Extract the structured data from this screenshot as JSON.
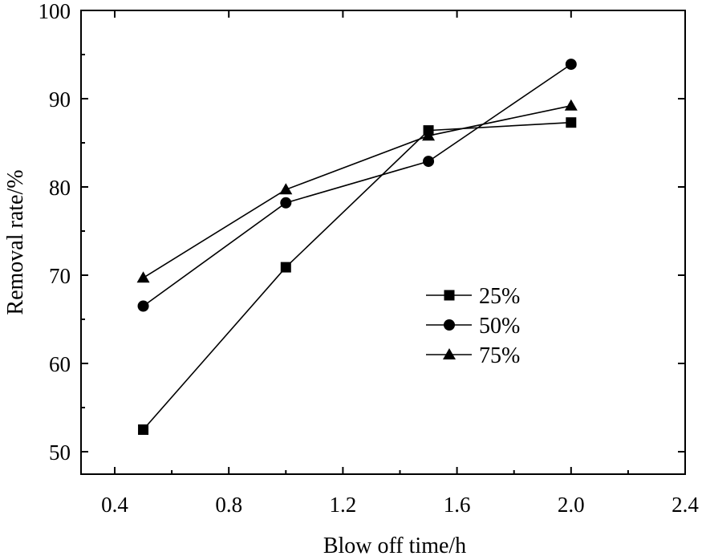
{
  "chart_data": {
    "type": "line",
    "title": "",
    "xlabel": "Blow off time/h",
    "ylabel": "Removal rate/%",
    "xlim": [
      0.2,
      2.4
    ],
    "ylim": [
      48,
      100
    ],
    "x_ticks": [
      "0.4",
      "0.8",
      "1.2",
      "1.6",
      "2.0",
      "2.4"
    ],
    "y_ticks": [
      "50",
      "60",
      "70",
      "80",
      "90",
      "100"
    ],
    "x": [
      0.5,
      1.0,
      1.5,
      2.0
    ],
    "series": [
      {
        "name": "25%",
        "marker": "square",
        "values": [
          52.5,
          70.9,
          86.4,
          87.3
        ]
      },
      {
        "name": "50%",
        "marker": "circle",
        "values": [
          66.5,
          78.2,
          82.9,
          93.9
        ]
      },
      {
        "name": "75%",
        "marker": "triangle",
        "values": [
          69.7,
          79.7,
          85.8,
          89.2
        ]
      }
    ],
    "legend": "center-right",
    "grid": false
  }
}
